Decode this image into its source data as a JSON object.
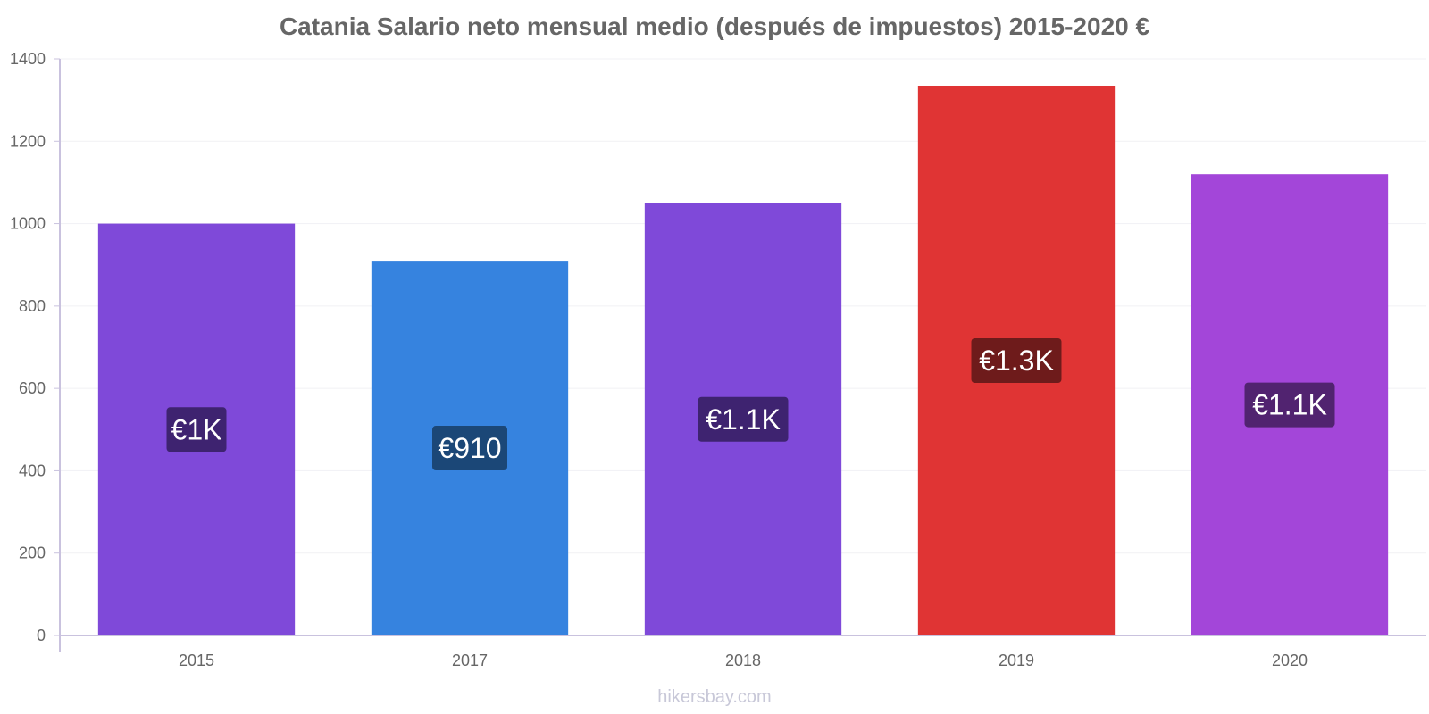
{
  "chart_data": {
    "type": "bar",
    "title": "Catania Salario neto mensual medio (después de impuestos) 2015-2020 €",
    "categories": [
      "2015",
      "2017",
      "2018",
      "2019",
      "2020"
    ],
    "values": [
      1000,
      910,
      1050,
      1335,
      1120
    ],
    "data_labels": [
      "€1K",
      "€910",
      "€1.1K",
      "€1.3K",
      "€1.1K"
    ],
    "bar_colors": [
      "#7f49d9",
      "#3683df",
      "#7f49d9",
      "#e03434",
      "#a346d9"
    ],
    "label_bg_colors": [
      "#3e2370",
      "#1b4777",
      "#3e2370",
      "#6e1b1b",
      "#512370"
    ],
    "ylim": [
      0,
      1400
    ],
    "yticks": [
      0,
      200,
      400,
      600,
      800,
      1000,
      1200,
      1400
    ],
    "xlabel": "",
    "ylabel": "",
    "grid": true,
    "legend": "none"
  },
  "watermark": "hikersbay.com"
}
